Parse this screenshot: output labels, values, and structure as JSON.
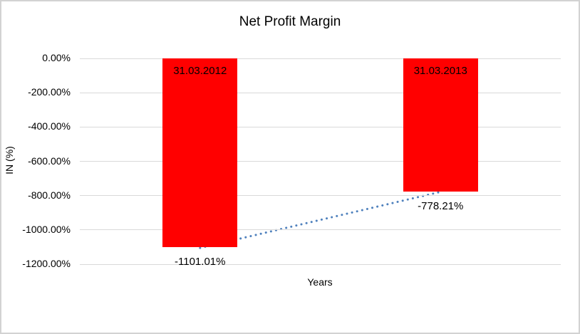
{
  "window": {
    "background_color": "#FFFFFF",
    "border_color": "#D2D2D2"
  },
  "chart_data": {
    "type": "bar",
    "title": "Net Profit Margin",
    "xlabel": "Years",
    "ylabel": "IN (%)",
    "categories": [
      "31.03.2012",
      "31.03.2013"
    ],
    "series": [
      {
        "name": "Net Profit Margin",
        "values": [
          -1101.01,
          -778.21
        ]
      }
    ],
    "values": [
      -1101.01,
      -778.21
    ],
    "data_labels": [
      "-1101.01%",
      "-778.21%"
    ],
    "ylim": [
      -1200,
      0
    ],
    "ytick_step": 200,
    "ytick_labels": [
      "0.00%",
      "-200.00%",
      "-400.00%",
      "-600.00%",
      "-800.00%",
      "-1000.00%",
      "-1200.00%"
    ],
    "grid": true,
    "gridline_color": "#D9D9D9",
    "bar_color": "#FF0000",
    "text_color": "#000000",
    "legend": "none",
    "trendline": {
      "type": "linear",
      "style": "dotted",
      "color": "#4F81BD",
      "connects": [
        [
          0,
          -1101.01
        ],
        [
          1,
          -778.21
        ]
      ]
    }
  }
}
